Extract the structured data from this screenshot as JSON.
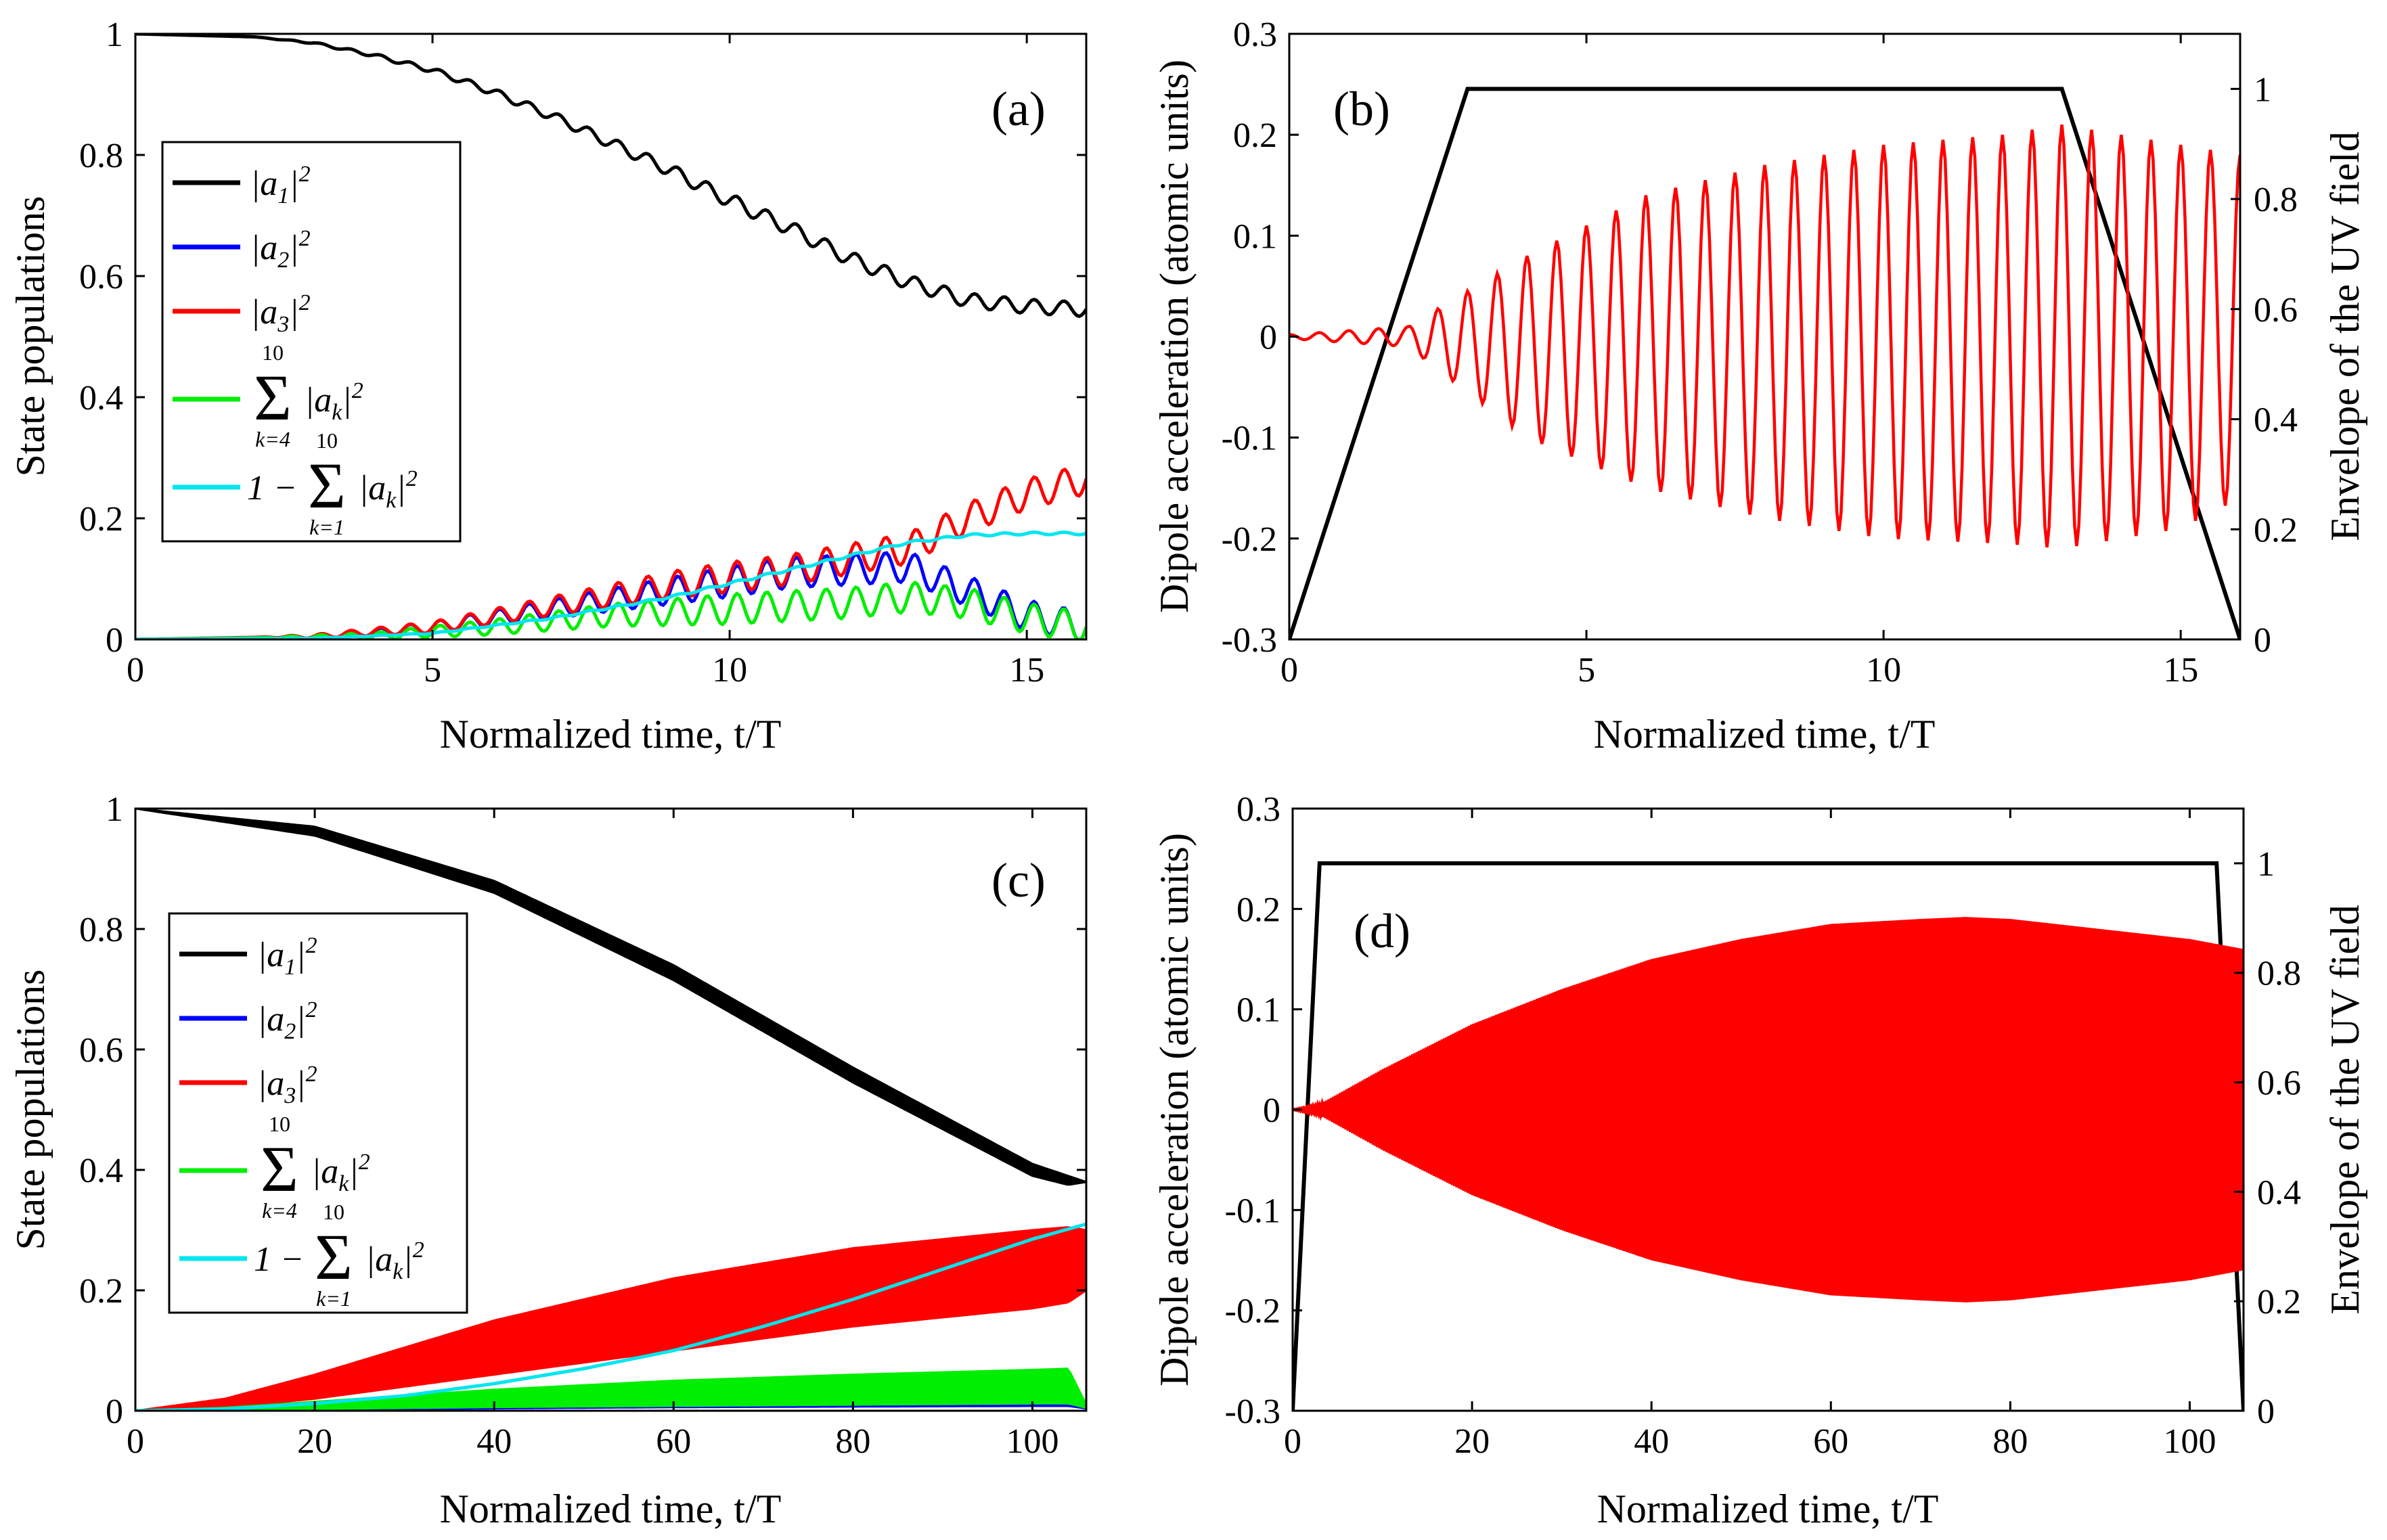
{
  "chart_data": [
    {
      "id": "a",
      "type": "line",
      "panel_label": "(a)",
      "xlabel": "Normalized time, t/T",
      "ylabel": "State populations",
      "xlim": [
        0,
        16
      ],
      "ylim": [
        0,
        1
      ],
      "xticks": [
        "0",
        "5",
        "10",
        "15"
      ],
      "yticks": [
        "0",
        "0.2",
        "0.4",
        "0.6",
        "0.8",
        "1"
      ],
      "legend_position": "left",
      "series": [
        {
          "name": "|a1|^2",
          "color": "#000000",
          "legend_main": "|a",
          "legend_sub": "1",
          "legend_sup": "2",
          "legend_close": "|",
          "x": [
            0,
            2,
            3,
            4,
            5,
            6,
            7,
            8,
            9,
            10,
            11,
            12,
            13,
            14,
            15,
            16
          ],
          "y": [
            1.0,
            0.995,
            0.985,
            0.965,
            0.94,
            0.905,
            0.865,
            0.82,
            0.775,
            0.725,
            0.68,
            0.63,
            0.59,
            0.56,
            0.55,
            0.545
          ]
        },
        {
          "name": "|a2|^2",
          "color": "#0000ff",
          "legend_main": "|a",
          "legend_sub": "2",
          "legend_sup": "2",
          "legend_close": "|",
          "x": [
            0,
            3,
            5,
            7,
            9,
            11,
            13,
            14,
            15,
            16
          ],
          "y": [
            0,
            0.002,
            0.02,
            0.05,
            0.08,
            0.11,
            0.12,
            0.08,
            0.04,
            0.02
          ]
        },
        {
          "name": "|a3|^2",
          "color": "#ff0000",
          "legend_main": "|a",
          "legend_sub": "3",
          "legend_sup": "2",
          "legend_close": "|",
          "x": [
            0,
            3,
            5,
            7,
            9,
            11,
            13,
            14,
            15,
            16
          ],
          "y": [
            0,
            0.005,
            0.02,
            0.055,
            0.09,
            0.115,
            0.15,
            0.2,
            0.24,
            0.265
          ]
        },
        {
          "name": "sum_{k=4}^{10} |ak|^2",
          "color": "#00ee00",
          "legend_main": "Σ",
          "legend_sup": "10",
          "legend_sub": "k=4",
          "legend_close": "|a",
          "x": [
            0,
            4,
            6,
            8,
            10,
            12,
            13,
            14,
            15,
            16
          ],
          "y": [
            0,
            0.005,
            0.02,
            0.04,
            0.05,
            0.06,
            0.07,
            0.06,
            0.035,
            0.02
          ]
        },
        {
          "name": "1 - sum_{k=1}^{10} |ak|^2",
          "color": "#00e5ee",
          "legend_main": "1 −",
          "legend_sup": "10",
          "legend_sub": "k=1",
          "legend_close": "|a",
          "x": [
            0,
            3,
            5,
            7,
            9,
            11,
            13,
            14,
            15,
            16
          ],
          "y": [
            0,
            0.002,
            0.01,
            0.035,
            0.07,
            0.115,
            0.16,
            0.172,
            0.175,
            0.175
          ]
        }
      ]
    },
    {
      "id": "b",
      "type": "line",
      "panel_label": "(b)",
      "xlabel": "Normalized time, t/T",
      "ylabel": "Dipole acceleration (atomic units)",
      "y2label": "Envelope of the UV field",
      "xlim": [
        0,
        16
      ],
      "ylim": [
        -0.3,
        0.3
      ],
      "y2lim": [
        0,
        1.1
      ],
      "xticks": [
        "0",
        "5",
        "10",
        "15"
      ],
      "yticks": [
        "-0.3",
        "-0.2",
        "-0.1",
        "0",
        "0.1",
        "0.2",
        "0.3"
      ],
      "y2ticks": [
        "0",
        "0.2",
        "0.4",
        "0.6",
        "0.8",
        "1"
      ],
      "series": [
        {
          "name": "Envelope of the UV field",
          "axis": "right",
          "color": "#000000",
          "x": [
            0,
            3,
            13,
            16
          ],
          "y": [
            0,
            1,
            1,
            0
          ]
        },
        {
          "name": "Dipole acceleration",
          "axis": "left",
          "color": "#ff0000",
          "oscillation_period": 0.5,
          "amp_x": [
            0,
            2,
            4,
            6,
            8,
            10,
            12,
            13,
            14,
            15,
            16
          ],
          "amp_hi": [
            0.002,
            0.01,
            0.08,
            0.14,
            0.17,
            0.19,
            0.2,
            0.21,
            0.2,
            0.19,
            0.18
          ],
          "amp_lo": [
            -0.002,
            -0.01,
            -0.1,
            -0.15,
            -0.18,
            -0.2,
            -0.205,
            -0.21,
            -0.2,
            -0.19,
            -0.16
          ]
        }
      ]
    },
    {
      "id": "c",
      "type": "line",
      "panel_label": "(c)",
      "xlabel": "Normalized time, t/T",
      "ylabel": "State populations",
      "xlim": [
        0,
        106
      ],
      "ylim": [
        0,
        1
      ],
      "xticks": [
        "0",
        "20",
        "40",
        "60",
        "80",
        "100"
      ],
      "yticks": [
        "0",
        "0.2",
        "0.4",
        "0.6",
        "0.8",
        "1"
      ],
      "legend_position": "left",
      "series": [
        {
          "name": "|a1|^2",
          "color": "#000000",
          "legend_main": "|a",
          "legend_sub": "1",
          "legend_sup": "2",
          "legend_close": "|",
          "x": [
            0,
            20,
            40,
            60,
            80,
            100,
            104,
            106
          ],
          "hi": [
            1.0,
            0.97,
            0.88,
            0.74,
            0.57,
            0.41,
            0.39,
            0.38
          ],
          "lo": [
            1.0,
            0.955,
            0.86,
            0.715,
            0.545,
            0.39,
            0.375,
            0.38
          ]
        },
        {
          "name": "|a2|^2",
          "color": "#0000ff",
          "legend_main": "|a",
          "legend_sub": "2",
          "legend_sup": "2",
          "legend_close": "|",
          "x": [
            0,
            20,
            40,
            60,
            80,
            100,
            104,
            106
          ],
          "y": [
            0,
            0.002,
            0.005,
            0.007,
            0.008,
            0.009,
            0.009,
            0.005
          ]
        },
        {
          "name": "|a3|^2",
          "color": "#ff0000",
          "legend_main": "|a",
          "legend_sub": "3",
          "legend_sup": "2",
          "legend_close": "|",
          "x": [
            0,
            10,
            20,
            40,
            60,
            80,
            100,
            104,
            106
          ],
          "hi": [
            0,
            0.02,
            0.06,
            0.15,
            0.22,
            0.27,
            0.3,
            0.305,
            0.3
          ],
          "lo": [
            0,
            0.005,
            0.02,
            0.06,
            0.1,
            0.14,
            0.17,
            0.18,
            0.2
          ]
        },
        {
          "name": "sum_{k=4}^{10} |ak|^2",
          "color": "#00ee00",
          "legend_main": "Σ",
          "legend_sup": "10",
          "legend_sub": "k=4",
          "legend_close": "|a",
          "x": [
            0,
            10,
            20,
            40,
            60,
            80,
            100,
            104,
            106
          ],
          "hi": [
            0,
            0.005,
            0.015,
            0.035,
            0.05,
            0.06,
            0.068,
            0.07,
            0.01
          ],
          "lo": [
            0,
            0.001,
            0.003,
            0.006,
            0.008,
            0.01,
            0.012,
            0.012,
            0.005
          ]
        },
        {
          "name": "1 - sum_{k=1}^{10} |ak|^2",
          "color": "#00e5ee",
          "legend_main": "1 −",
          "legend_sup": "10",
          "legend_sub": "k=1",
          "legend_close": "|a",
          "x": [
            0,
            10,
            20,
            30,
            40,
            50,
            60,
            70,
            80,
            90,
            100,
            106
          ],
          "y": [
            0,
            0.003,
            0.012,
            0.025,
            0.045,
            0.07,
            0.1,
            0.14,
            0.185,
            0.235,
            0.285,
            0.31
          ]
        }
      ]
    },
    {
      "id": "d",
      "type": "line",
      "panel_label": "(d)",
      "xlabel": "Normalized time, t/T",
      "ylabel": "Dipole acceleration (atomic units)",
      "y2label": "Envelope of the UV field",
      "xlim": [
        0,
        106
      ],
      "ylim": [
        -0.3,
        0.3
      ],
      "y2lim": [
        0,
        1.1
      ],
      "xticks": [
        "0",
        "20",
        "40",
        "60",
        "80",
        "100"
      ],
      "yticks": [
        "-0.3",
        "-0.2",
        "-0.1",
        "0",
        "0.1",
        "0.2",
        "0.3"
      ],
      "y2ticks": [
        "0",
        "0.2",
        "0.4",
        "0.6",
        "0.8",
        "1"
      ],
      "series": [
        {
          "name": "Envelope of the UV field",
          "axis": "right",
          "color": "#000000",
          "x": [
            0,
            3,
            103,
            106
          ],
          "y": [
            0,
            1,
            1,
            0
          ]
        },
        {
          "name": "Dipole acceleration",
          "axis": "left",
          "color": "#ff0000",
          "amp_x": [
            0,
            3,
            10,
            20,
            30,
            40,
            50,
            60,
            70,
            75,
            80,
            90,
            100,
            106
          ],
          "amp_hi": [
            0,
            0.005,
            0.04,
            0.085,
            0.12,
            0.15,
            0.17,
            0.185,
            0.19,
            0.192,
            0.19,
            0.18,
            0.17,
            0.16
          ],
          "amp_lo": [
            0,
            -0.005,
            -0.04,
            -0.085,
            -0.12,
            -0.15,
            -0.17,
            -0.185,
            -0.19,
            -0.192,
            -0.19,
            -0.18,
            -0.17,
            -0.16
          ]
        }
      ]
    }
  ]
}
